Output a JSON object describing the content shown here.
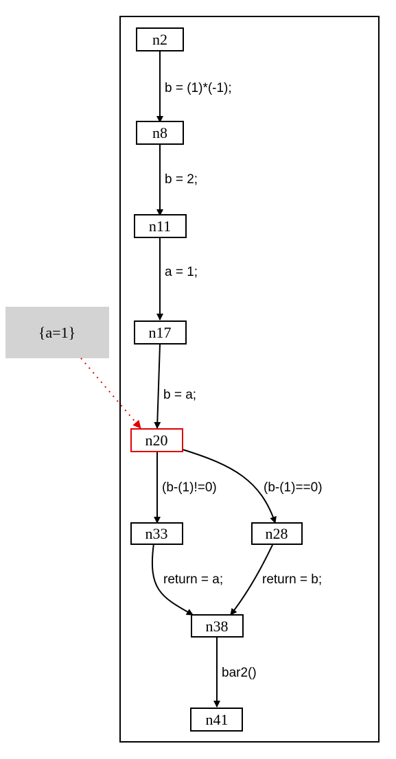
{
  "colors": {
    "highlight": "#e00000",
    "note_fill": "#d3d3d3",
    "stroke": "#000000"
  },
  "nodes": {
    "n2": "n2",
    "n8": "n8",
    "n11": "n11",
    "n17": "n17",
    "n20": "n20",
    "n33": "n33",
    "n28": "n28",
    "n38": "n38",
    "n41": "n41"
  },
  "note": {
    "label": "{a=1}"
  },
  "edges": {
    "n2_n8": "b = (1)*(-1);",
    "n8_n11": "b = 2;",
    "n11_n17": "a = 1;",
    "n17_n20": "b = a;",
    "n20_n33": "(b-(1)!=0)",
    "n20_n28": "(b-(1)==0)",
    "n33_n38": "return = a;",
    "n28_n38": "return = b;",
    "n38_n41": "bar2()"
  }
}
